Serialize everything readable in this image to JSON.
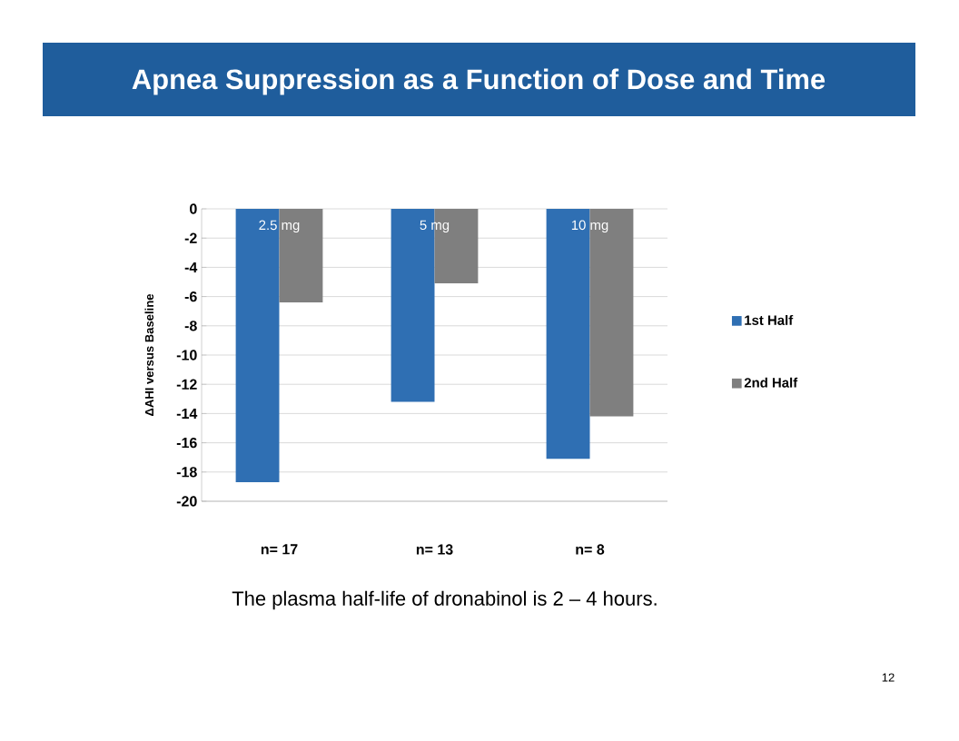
{
  "chart_data": {
    "type": "bar",
    "title": "Apnea Suppression as a Function of Dose and Time",
    "ylabel": "ΔAHI versus Baseline",
    "categories": [
      "n= 17",
      "n= 13",
      "n= 8"
    ],
    "series": [
      {
        "name": "1st Half",
        "color": "#2f6fb3",
        "values": [
          -18.7,
          -13.2,
          -17.1
        ]
      },
      {
        "name": "2nd Half",
        "color": "#7f7f7f",
        "values": [
          -6.4,
          -5.1,
          -14.2
        ]
      }
    ],
    "ylim": [
      -20,
      0
    ],
    "yticks": [
      -20,
      -18,
      -16,
      -14,
      -12,
      -10,
      -8,
      -6,
      -4,
      -2,
      0
    ],
    "grid": "y",
    "legend": "right",
    "annotations": [
      {
        "text": "2.5 mg",
        "x": "n= 17",
        "y": -1.2
      },
      {
        "text": "5 mg",
        "x": "n= 13",
        "y": -1.2
      },
      {
        "text": "10 mg",
        "x": "n= 8",
        "y": -1.2
      },
      "The plasma half-life of dronabinol is 2 – 4 hours.",
      "12"
    ]
  }
}
